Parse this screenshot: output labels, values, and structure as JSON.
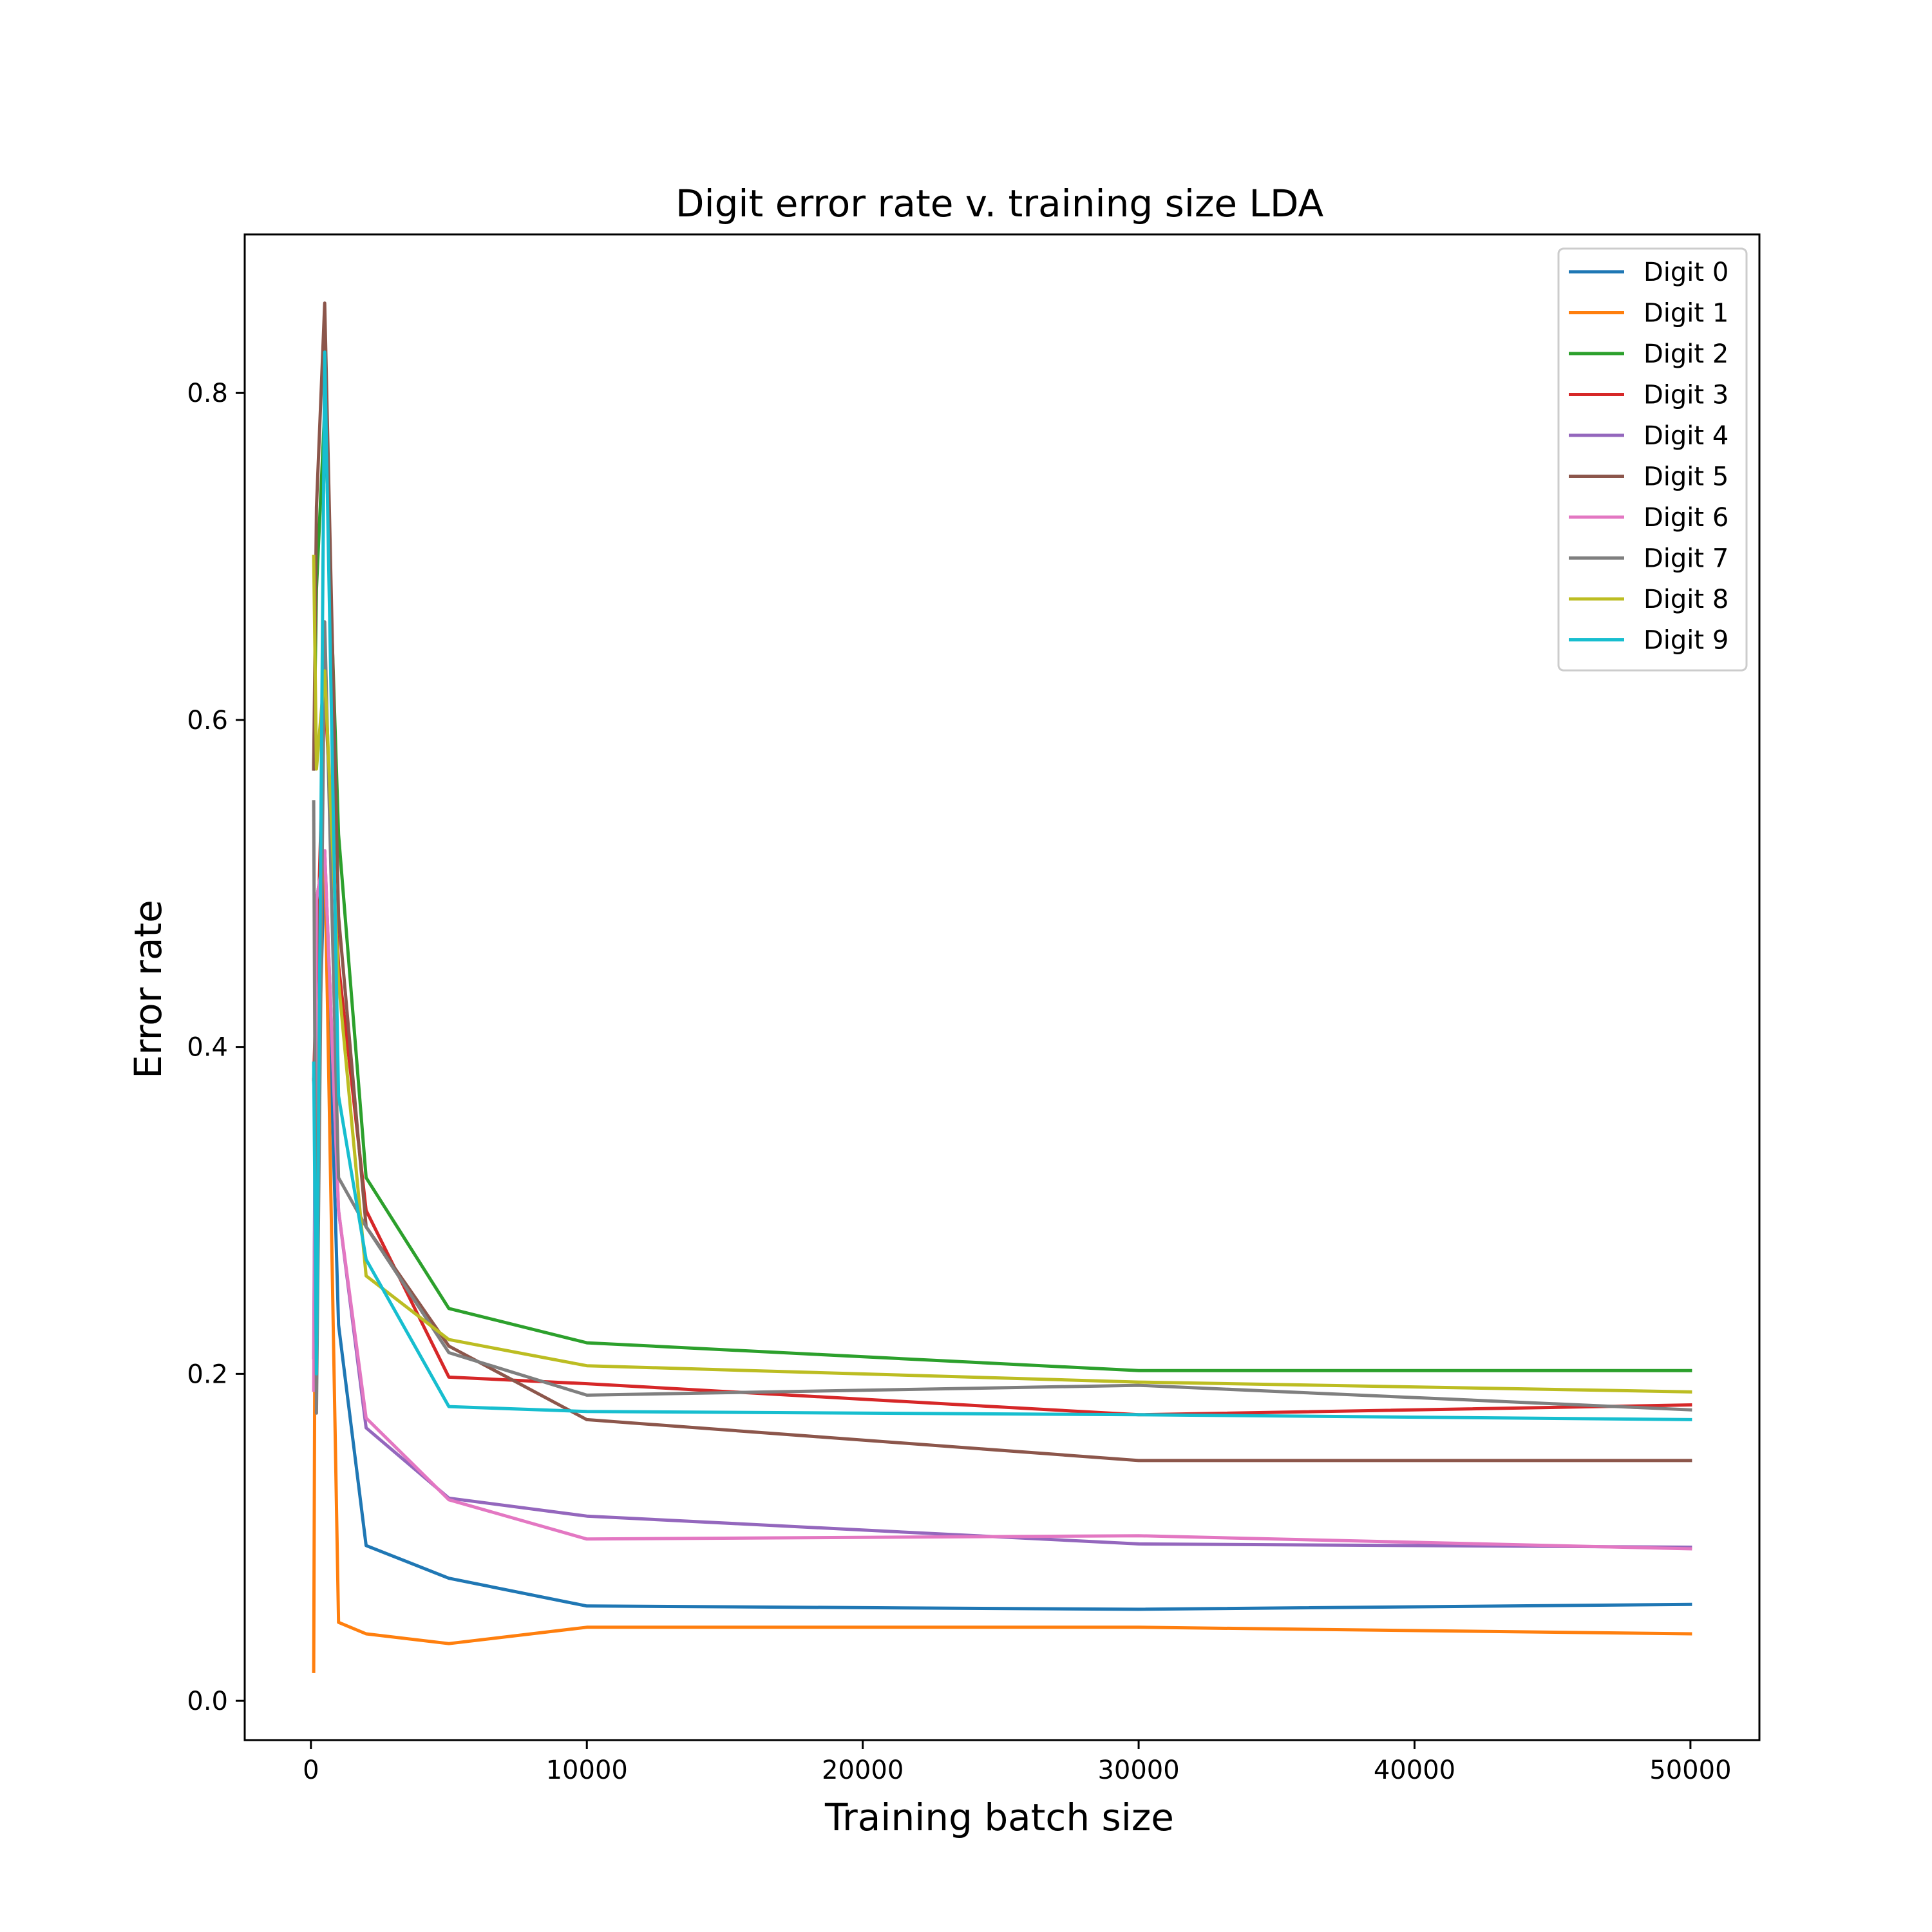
{
  "chart_data": {
    "type": "line",
    "title": "Digit error rate v. training size LDA",
    "xlabel": "Training batch size",
    "ylabel": "Error rate",
    "xlim": [
      -2400,
      52500
    ],
    "ylim": [
      -0.024,
      0.897
    ],
    "xticks": [
      0,
      10000,
      20000,
      30000,
      40000,
      50000
    ],
    "xtick_labels": [
      "0",
      "10000",
      "20000",
      "30000",
      "40000",
      "50000"
    ],
    "yticks": [
      0.0,
      0.2,
      0.4,
      0.6,
      0.8
    ],
    "ytick_labels": [
      "0.0",
      "0.2",
      "0.4",
      "0.6",
      "0.8"
    ],
    "grid": false,
    "legend_position": "top-right",
    "x": [
      100,
      200,
      500,
      1000,
      2000,
      5000,
      10000,
      30000,
      50000
    ],
    "series": [
      {
        "name": "Digit 0",
        "color": "#1f77b4",
        "values": [
          0.38,
          0.34,
          0.52,
          0.23,
          0.095,
          0.075,
          0.058,
          0.056,
          0.059
        ]
      },
      {
        "name": "Digit 1",
        "color": "#ff7f0e",
        "values": [
          0.018,
          0.49,
          0.52,
          0.048,
          0.041,
          0.035,
          0.045,
          0.045,
          0.041
        ]
      },
      {
        "name": "Digit 2",
        "color": "#2ca02c",
        "values": [
          0.57,
          0.68,
          0.79,
          0.53,
          0.32,
          0.24,
          0.219,
          0.202,
          0.202
        ]
      },
      {
        "name": "Digit 3",
        "color": "#d62728",
        "values": [
          0.38,
          0.44,
          0.62,
          0.45,
          0.3,
          0.198,
          0.194,
          0.175,
          0.181
        ]
      },
      {
        "name": "Digit 4",
        "color": "#9467bd",
        "values": [
          0.21,
          0.49,
          0.52,
          0.3,
          0.167,
          0.124,
          0.113,
          0.096,
          0.094
        ]
      },
      {
        "name": "Digit 5",
        "color": "#8c564b",
        "values": [
          0.57,
          0.73,
          0.855,
          0.48,
          0.29,
          0.217,
          0.172,
          0.147,
          0.147
        ]
      },
      {
        "name": "Digit 6",
        "color": "#e377c2",
        "values": [
          0.19,
          0.49,
          0.52,
          0.3,
          0.173,
          0.123,
          0.099,
          0.101,
          0.093
        ]
      },
      {
        "name": "Digit 7",
        "color": "#7f7f7f",
        "values": [
          0.55,
          0.176,
          0.66,
          0.32,
          0.29,
          0.213,
          0.187,
          0.193,
          0.178
        ]
      },
      {
        "name": "Digit 8",
        "color": "#bcbd22",
        "values": [
          0.7,
          0.57,
          0.63,
          0.44,
          0.26,
          0.221,
          0.205,
          0.195,
          0.189
        ]
      },
      {
        "name": "Digit 9",
        "color": "#17becf",
        "values": [
          0.39,
          0.2,
          0.825,
          0.37,
          0.27,
          0.18,
          0.177,
          0.175,
          0.172
        ]
      }
    ]
  }
}
